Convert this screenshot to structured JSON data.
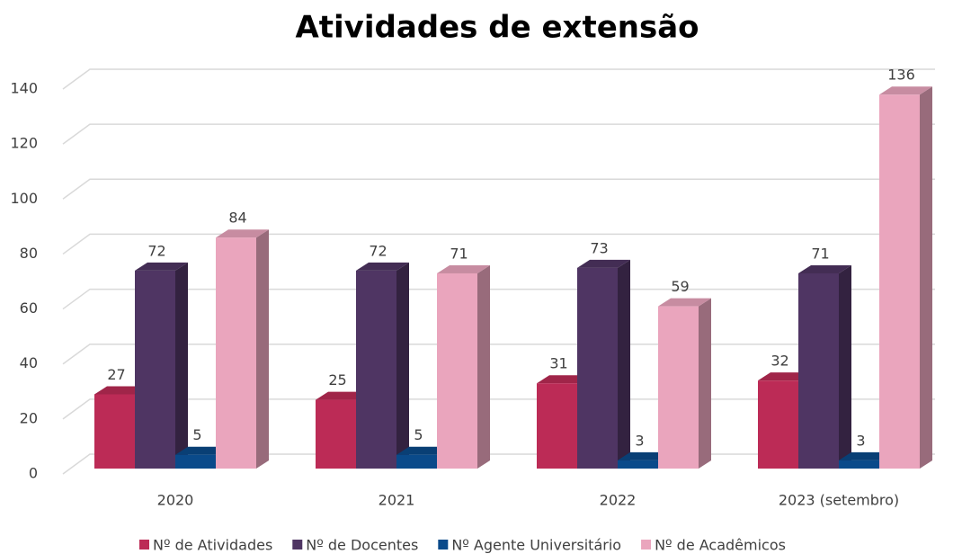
{
  "chart_data": {
    "type": "bar3d",
    "title": "Atividades de extensão",
    "categories": [
      "2020",
      "2021",
      "2022",
      "2023 (setembro)"
    ],
    "series": [
      {
        "name": "Nº de Atividades",
        "color": "#bc2b56",
        "values": [
          27,
          25,
          31,
          32
        ]
      },
      {
        "name": "Nº de Docentes",
        "color": "#4f3563",
        "values": [
          72,
          72,
          73,
          71
        ]
      },
      {
        "name": "Nº Agente Universitário",
        "color": "#0a4a8a",
        "values": [
          5,
          5,
          3,
          3
        ]
      },
      {
        "name": "Nº de Acadêmicos",
        "color": "#eaa5bd",
        "values": [
          84,
          71,
          59,
          136
        ]
      }
    ],
    "ylim": [
      0,
      140
    ],
    "yticks": [
      0,
      20,
      40,
      60,
      80,
      100,
      120,
      140
    ],
    "grid": true,
    "legend": "bottom"
  }
}
